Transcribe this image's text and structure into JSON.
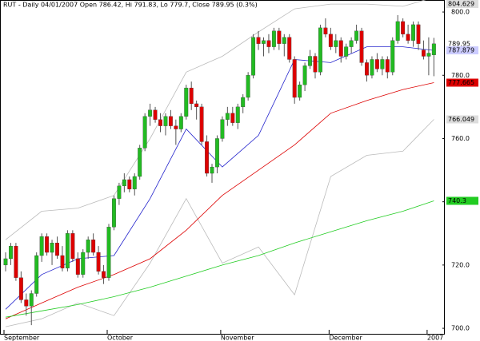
{
  "chart_data": {
    "type": "candlestick",
    "title": "RUT - Daily 04/01/2007 Open 786.42, Hi 791.83, Lo 779.7, Close 789.95 (0.3%)",
    "categories": [
      "September",
      null,
      null,
      null,
      null,
      null,
      null,
      null,
      null,
      null,
      null,
      null,
      null,
      null,
      null,
      null,
      null,
      null,
      null,
      null,
      "October",
      null,
      null,
      null,
      null,
      null,
      null,
      null,
      null,
      null,
      null,
      null,
      null,
      null,
      null,
      null,
      null,
      null,
      null,
      null,
      null,
      null,
      "November",
      null,
      null,
      null,
      null,
      null,
      null,
      null,
      null,
      null,
      null,
      null,
      null,
      null,
      null,
      null,
      null,
      null,
      null,
      null,
      null,
      "December",
      null,
      null,
      null,
      null,
      null,
      null,
      null,
      null,
      null,
      null,
      null,
      null,
      null,
      null,
      null,
      null,
      null,
      null,
      "2007",
      null
    ],
    "ohlc": [
      [
        720,
        724,
        718,
        722
      ],
      [
        722,
        727,
        720,
        726
      ],
      [
        726,
        727,
        715,
        716
      ],
      [
        716,
        718,
        708,
        709
      ],
      [
        709,
        711,
        704,
        707
      ],
      [
        707,
        712,
        701,
        711
      ],
      [
        711,
        724,
        710,
        723
      ],
      [
        723,
        730,
        721,
        729
      ],
      [
        729,
        730,
        723,
        724
      ],
      [
        724,
        728,
        720,
        727
      ],
      [
        727,
        729,
        722,
        723
      ],
      [
        723,
        726,
        718,
        719
      ],
      [
        719,
        731,
        718,
        730
      ],
      [
        730,
        731,
        721,
        722
      ],
      [
        722,
        724,
        716,
        717
      ],
      [
        717,
        725,
        716,
        724
      ],
      [
        724,
        729,
        722,
        728
      ],
      [
        728,
        730,
        723,
        724
      ],
      [
        724,
        726,
        717,
        718
      ],
      [
        718,
        720,
        714,
        716
      ],
      [
        716,
        733,
        715,
        732
      ],
      [
        732,
        742,
        731,
        741
      ],
      [
        741,
        746,
        739,
        745
      ],
      [
        745,
        749,
        743,
        747
      ],
      [
        747,
        748,
        743,
        744
      ],
      [
        744,
        749,
        742,
        748
      ],
      [
        748,
        758,
        747,
        757
      ],
      [
        757,
        768,
        756,
        767
      ],
      [
        767,
        771,
        764,
        769
      ],
      [
        769,
        770,
        765,
        766
      ],
      [
        766,
        768,
        762,
        764
      ],
      [
        764,
        768,
        761,
        767
      ],
      [
        767,
        769,
        763,
        764
      ],
      [
        764,
        766,
        758,
        763
      ],
      [
        763,
        768,
        762,
        767
      ],
      [
        767,
        777,
        766,
        776
      ],
      [
        776,
        778,
        769,
        771
      ],
      [
        771,
        772,
        766,
        770
      ],
      [
        770,
        771,
        758,
        759
      ],
      [
        759,
        761,
        748,
        749
      ],
      [
        749,
        752,
        746,
        751
      ],
      [
        751,
        761,
        749,
        760
      ],
      [
        760,
        767,
        759,
        766
      ],
      [
        766,
        770,
        764,
        768
      ],
      [
        768,
        770,
        764,
        765
      ],
      [
        765,
        771,
        763,
        770
      ],
      [
        770,
        774,
        768,
        773
      ],
      [
        773,
        781,
        772,
        780
      ],
      [
        780,
        793,
        779,
        792
      ],
      [
        792,
        794,
        788,
        790
      ],
      [
        790,
        792,
        786,
        791
      ],
      [
        791,
        793,
        787,
        789
      ],
      [
        789,
        795,
        788,
        794
      ],
      [
        794,
        795,
        788,
        790
      ],
      [
        790,
        793,
        786,
        792
      ],
      [
        792,
        793,
        784,
        785
      ],
      [
        785,
        786,
        771,
        773
      ],
      [
        773,
        778,
        772,
        777
      ],
      [
        777,
        784,
        775,
        783
      ],
      [
        783,
        788,
        782,
        786
      ],
      [
        786,
        787,
        779,
        781
      ],
      [
        781,
        796,
        780,
        795
      ],
      [
        795,
        798,
        792,
        793
      ],
      [
        793,
        795,
        788,
        789
      ],
      [
        789,
        793,
        787,
        791
      ],
      [
        791,
        792,
        784,
        786
      ],
      [
        786,
        790,
        785,
        789
      ],
      [
        789,
        792,
        787,
        791
      ],
      [
        791,
        796,
        790,
        794
      ],
      [
        794,
        795,
        783,
        784
      ],
      [
        784,
        785,
        778,
        780
      ],
      [
        780,
        786,
        779,
        785
      ],
      [
        785,
        787,
        781,
        782
      ],
      [
        782,
        786,
        780,
        785
      ],
      [
        785,
        786,
        779,
        781
      ],
      [
        781,
        792,
        780,
        791
      ],
      [
        791,
        799,
        790,
        797
      ],
      [
        797,
        798,
        792,
        793
      ],
      [
        793,
        796,
        790,
        791
      ],
      [
        791,
        797,
        789,
        796
      ],
      [
        796,
        797,
        788,
        790
      ],
      [
        788,
        791,
        785,
        786
      ],
      [
        786,
        792,
        780,
        787
      ],
      [
        786.42,
        791.83,
        779.7,
        789.95
      ]
    ],
    "up_color": "#22bb22",
    "down_color": "#dd0000",
    "line_x": [
      0,
      7,
      14,
      21,
      28,
      35,
      42,
      49,
      56,
      63,
      70,
      77,
      83
    ],
    "lines": [
      {
        "color": "#bbbbbb",
        "values": [
          728,
          737,
          738,
          742,
          760,
          781,
          786,
          793.7,
          801,
          802.5,
          802.5,
          801.8,
          804.629
        ]
      },
      {
        "color": "#bbbbbb",
        "values": [
          700.5,
          703,
          708,
          704,
          720.6,
          741,
          720.6,
          725.7,
          710.6,
          748,
          754.7,
          756,
          766.049
        ]
      },
      {
        "color": "#2222cc",
        "values": [
          706,
          717,
          722,
          723,
          741,
          763,
          751,
          761,
          785,
          784,
          789,
          789,
          787.879
        ]
      },
      {
        "color": "#dd0000",
        "values": [
          703,
          708,
          713,
          717,
          722,
          731,
          742,
          750,
          758,
          768,
          772,
          775.5,
          777.665
        ]
      },
      {
        "color": "#22cc22",
        "values": [
          703.5,
          705.5,
          707.5,
          710,
          713,
          716.5,
          720,
          723,
          727,
          730.5,
          734,
          737,
          740.3
        ]
      }
    ],
    "markers": [
      {
        "label": "804.629",
        "value": 804.629,
        "color": "#dddddd"
      },
      {
        "label": "789.95",
        "value": 789.95,
        "color": "#ffffff"
      },
      {
        "label": "787.879",
        "value": 787.879,
        "color": "#ccccff"
      },
      {
        "label": "777.665",
        "value": 777.665,
        "color": "#dd0000"
      },
      {
        "label": "766.049",
        "value": 766.049,
        "color": "#dddddd"
      },
      {
        "label": "740.3",
        "value": 740.3,
        "color": "#22cc22"
      }
    ],
    "ylim": [
      698,
      803.8
    ],
    "yticks": [
      {
        "value": 700,
        "label": "700.0"
      },
      {
        "value": 720,
        "label": "720.0"
      },
      {
        "value": 740,
        "label": "740.0"
      },
      {
        "value": 760,
        "label": "760.0"
      },
      {
        "value": 780,
        "label": "780.0"
      },
      {
        "value": 800,
        "label": "800.0"
      }
    ]
  }
}
